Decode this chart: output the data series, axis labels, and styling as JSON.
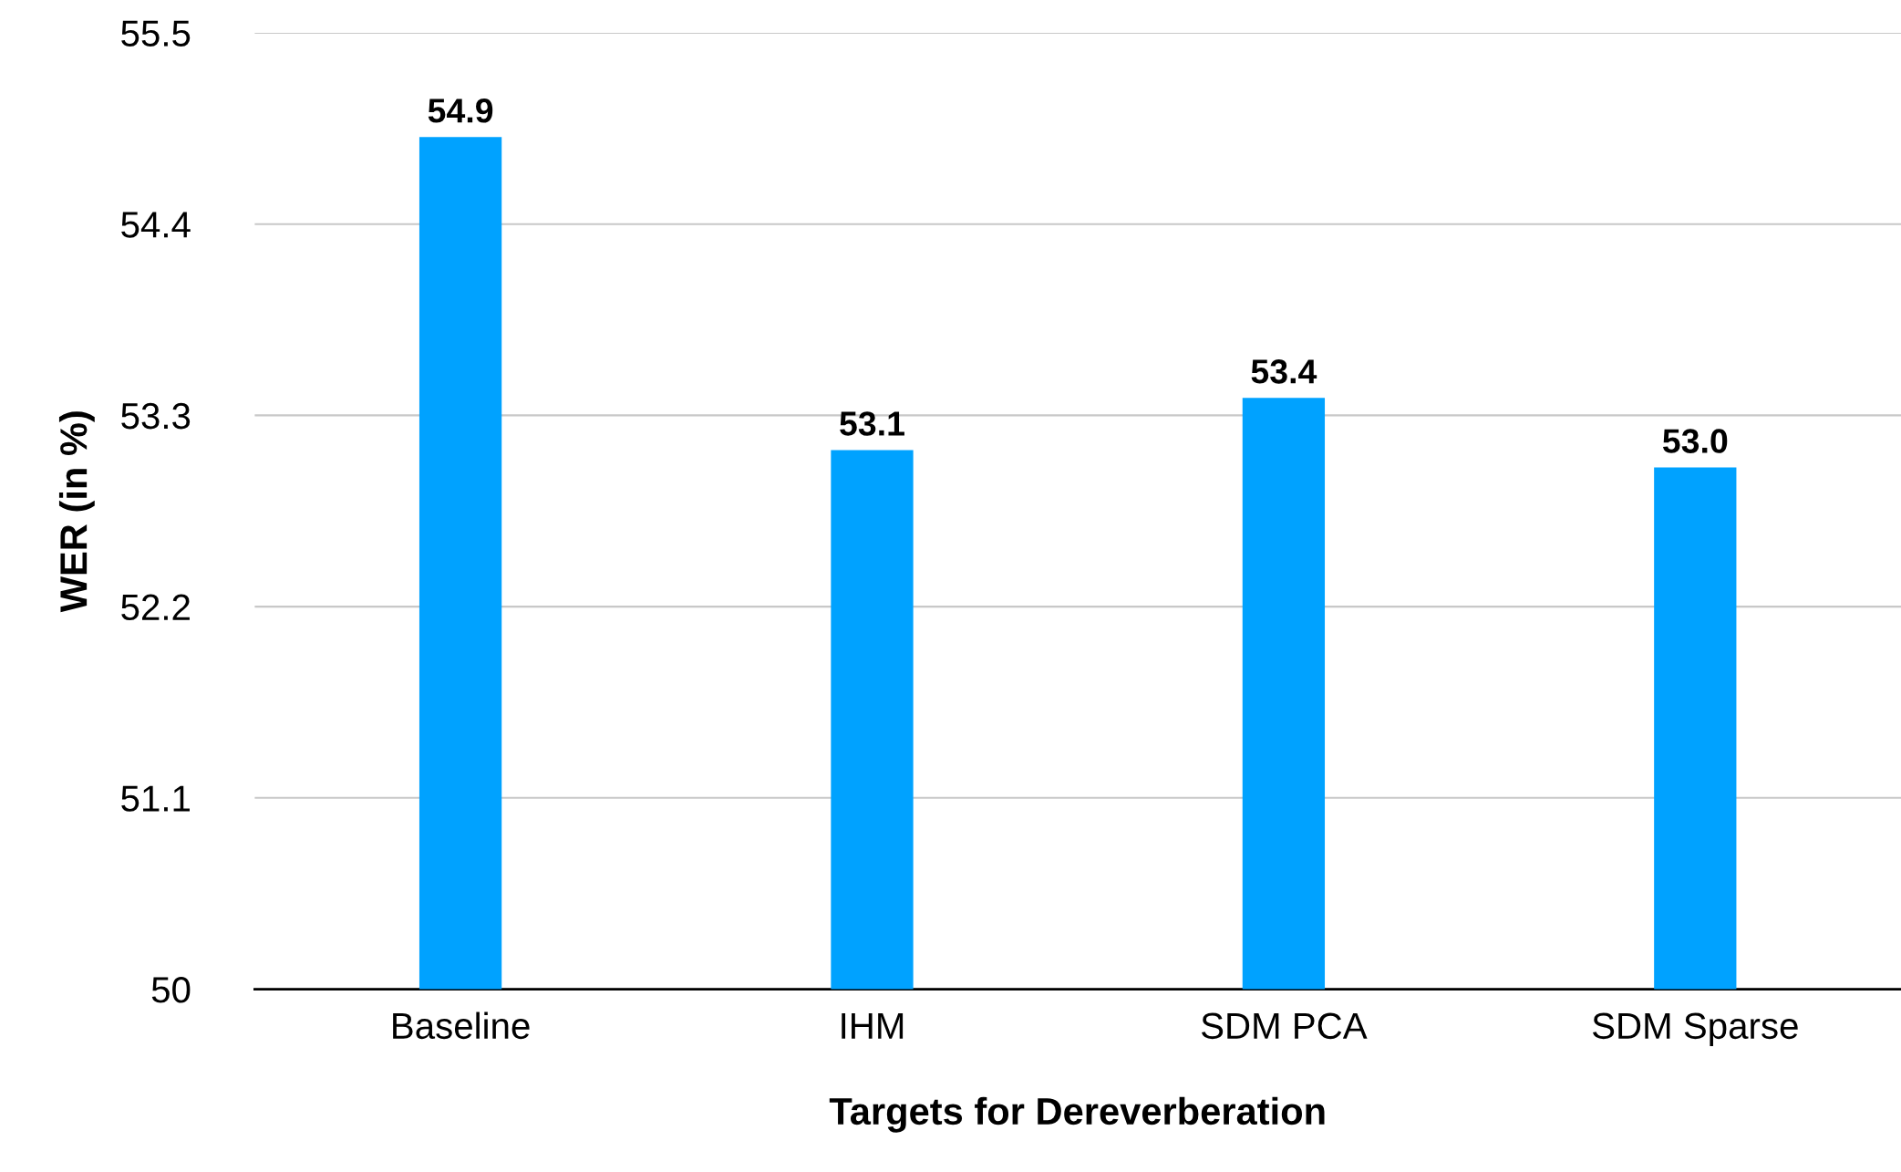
{
  "chart_data": {
    "type": "bar",
    "xlabel": "Targets for Dereverberation",
    "ylabel": "WER (in %)",
    "categories": [
      "Baseline",
      "IHM",
      "SDM PCA",
      "SDM Sparse"
    ],
    "values": [
      54.9,
      53.1,
      53.4,
      53.0
    ],
    "color": "#00a2ff",
    "ylim": [
      50,
      55.5
    ],
    "yticks": [
      50,
      51.1,
      52.2,
      53.3,
      54.4,
      55.5
    ],
    "grid": "y",
    "data_labels": true,
    "value_labels": [
      "54.9",
      "53.1",
      "53.4",
      "53.0"
    ]
  }
}
